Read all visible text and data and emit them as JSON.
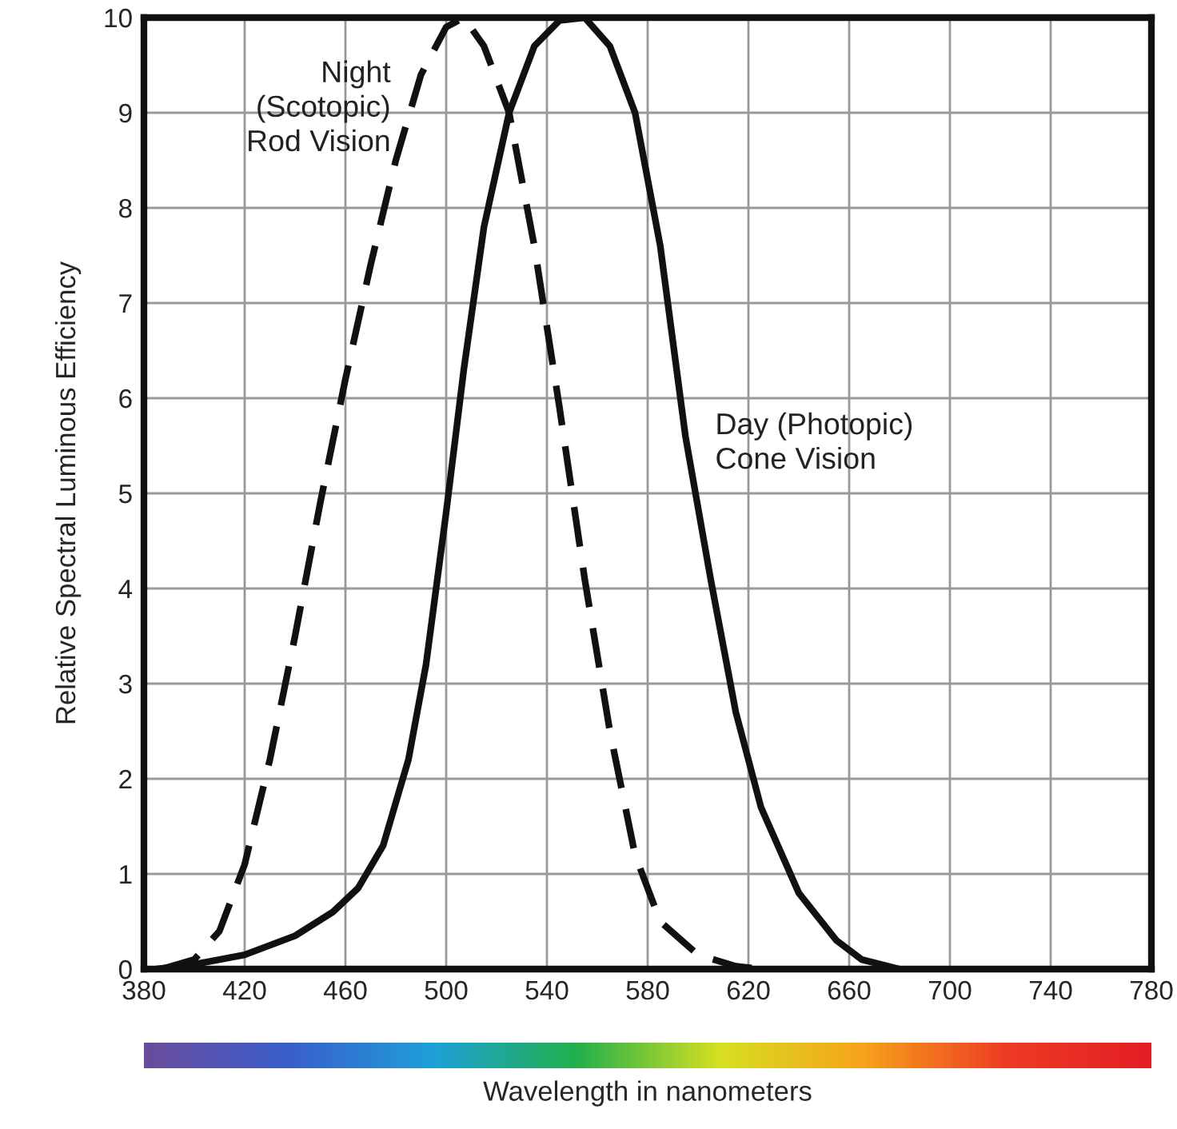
{
  "chart_data": {
    "type": "line",
    "xlabel": "Wavelength in nanometers",
    "ylabel": "Relative Spectral Luminous Efficiency",
    "xlim": [
      380,
      780
    ],
    "xticks": [
      380,
      420,
      460,
      500,
      540,
      580,
      620,
      660,
      700,
      740,
      780
    ],
    "ylim": [
      0,
      10
    ],
    "yticks": [
      0,
      1,
      2,
      3,
      4,
      5,
      6,
      7,
      8,
      9,
      10
    ],
    "grid": true,
    "legend": false,
    "marker": "none",
    "series": [
      {
        "name": "Night\n(Scotopic)\nRod Vision",
        "color": "#111111",
        "line_style": "dashed",
        "x": [
          387,
          400,
          410,
          420,
          430,
          440,
          450,
          460,
          470,
          480,
          490,
          500,
          507,
          515,
          525,
          535,
          545,
          555,
          565,
          575,
          585,
          600,
          615,
          625
        ],
        "values": [
          0,
          0.1,
          0.4,
          1.1,
          2.2,
          3.5,
          4.9,
          6.2,
          7.4,
          8.5,
          9.4,
          9.9,
          10,
          9.7,
          9.0,
          7.6,
          5.9,
          4.1,
          2.5,
          1.2,
          0.5,
          0.15,
          0.03,
          0
        ]
      },
      {
        "name": "Day (Photopic)\nCone Vision",
        "color": "#111111",
        "line_style": "solid",
        "x": [
          385,
          400,
          420,
          440,
          455,
          465,
          475,
          485,
          492,
          500,
          507,
          515,
          525,
          535,
          545,
          555,
          565,
          575,
          585,
          595,
          605,
          615,
          625,
          640,
          655,
          665,
          680
        ],
        "values": [
          0,
          0.05,
          0.15,
          0.35,
          0.6,
          0.85,
          1.3,
          2.2,
          3.2,
          4.8,
          6.3,
          7.8,
          9.0,
          9.7,
          9.97,
          10,
          9.7,
          9.0,
          7.6,
          5.6,
          4.1,
          2.7,
          1.7,
          0.8,
          0.3,
          0.1,
          0
        ]
      }
    ]
  }
}
